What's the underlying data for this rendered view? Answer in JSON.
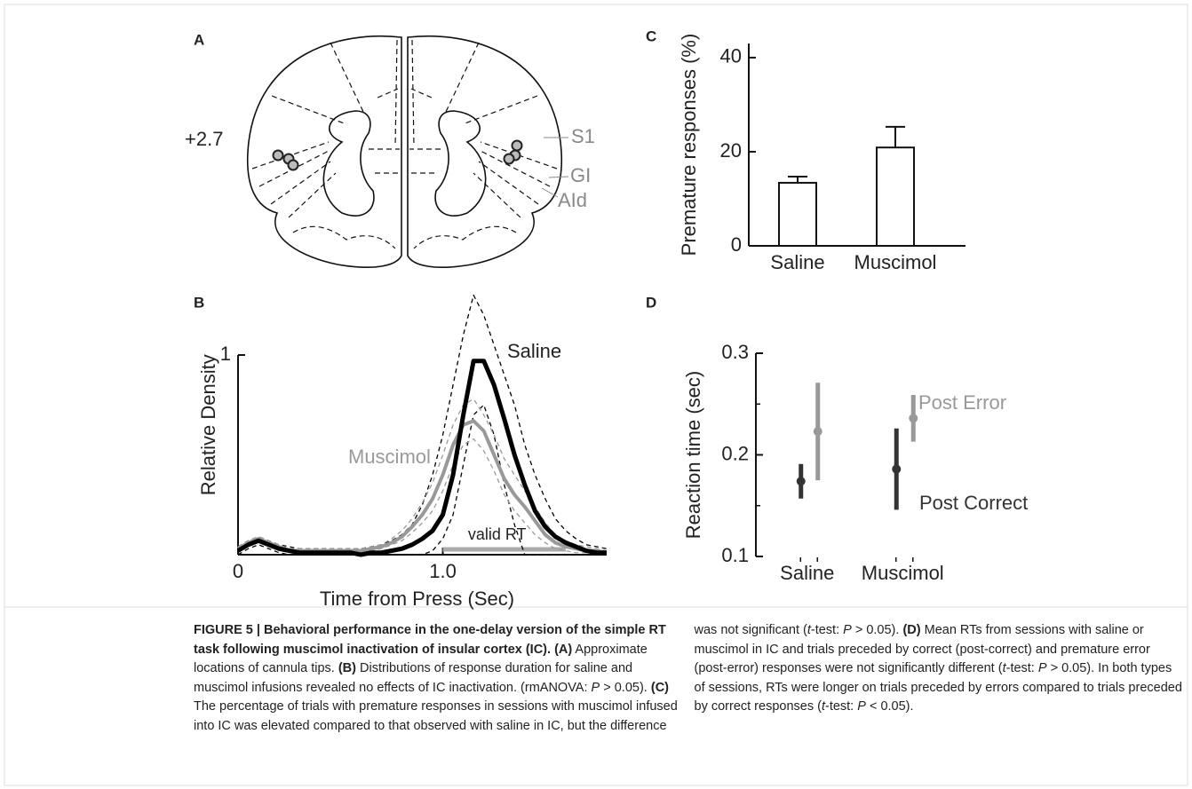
{
  "figure": {
    "panel_labels": [
      "A",
      "B",
      "C",
      "D"
    ]
  },
  "diagram": {
    "bregma": "+2.7",
    "regions": [
      "S1",
      "GI",
      "AId"
    ]
  },
  "chart_data": [
    {
      "type": "line",
      "xlabel": "Time from Press (Sec)",
      "ylabel": "Relative Density",
      "x": [
        0,
        0.05,
        0.1,
        0.15,
        0.2,
        0.25,
        0.3,
        0.35,
        0.4,
        0.45,
        0.5,
        0.55,
        0.6,
        0.65,
        0.7,
        0.75,
        0.8,
        0.85,
        0.9,
        0.95,
        1,
        1.05,
        1.1,
        1.15,
        1.2,
        1.25,
        1.3,
        1.35,
        1.4,
        1.45,
        1.5,
        1.55,
        1.6,
        1.65,
        1.7,
        1.75,
        1.8
      ],
      "series": [
        {
          "name": "Saline",
          "color": "#000000",
          "width": 5,
          "values": [
            0.02,
            0.05,
            0.07,
            0.05,
            0.03,
            0.02,
            0.01,
            0.01,
            0.01,
            0.01,
            0.01,
            0.01,
            0.0,
            0.01,
            0.01,
            0.02,
            0.03,
            0.05,
            0.08,
            0.12,
            0.2,
            0.4,
            0.7,
            0.97,
            0.97,
            0.85,
            0.68,
            0.5,
            0.35,
            0.22,
            0.14,
            0.09,
            0.06,
            0.04,
            0.02,
            0.01,
            0.01
          ]
        },
        {
          "name": "Muscimol",
          "color": "#999999",
          "width": 4,
          "values": [
            0.03,
            0.06,
            0.08,
            0.06,
            0.04,
            0.02,
            0.02,
            0.02,
            0.02,
            0.02,
            0.02,
            0.02,
            0.02,
            0.03,
            0.04,
            0.06,
            0.09,
            0.14,
            0.2,
            0.28,
            0.4,
            0.55,
            0.65,
            0.67,
            0.62,
            0.5,
            0.38,
            0.3,
            0.24,
            0.17,
            0.1,
            0.06,
            0.04,
            0.03,
            0.02,
            0.02,
            0.01
          ]
        },
        {
          "color": "#000000",
          "width": 1.3,
          "dashed": true,
          "values": [
            0.04,
            0.07,
            0.09,
            0.07,
            0.05,
            0.04,
            0.03,
            0.03,
            0.03,
            0.03,
            0.03,
            0.03,
            0.03,
            0.04,
            0.05,
            0.07,
            0.1,
            0.15,
            0.25,
            0.4,
            0.6,
            0.85,
            1.1,
            1.3,
            1.2,
            1.05,
            0.9,
            0.75,
            0.55,
            0.4,
            0.28,
            0.18,
            0.12,
            0.08,
            0.05,
            0.04,
            0.03
          ]
        },
        {
          "color": "#000000",
          "width": 1.3,
          "dashed": true,
          "values": [
            0.0,
            0.03,
            0.05,
            0.03,
            0.01,
            0.0,
            0.0,
            0.0,
            0.0,
            0.0,
            0.0,
            0.0,
            0.0,
            0.0,
            0.0,
            0.0,
            0.0,
            0.0,
            0.0,
            0.02,
            0.08,
            0.2,
            0.45,
            0.7,
            0.75,
            0.6,
            0.35,
            0.15,
            0.0,
            0.0,
            0.0,
            0.0,
            0.0,
            0.0,
            0.0,
            0.0,
            0.0
          ]
        },
        {
          "color": "#999999",
          "width": 1.3,
          "dashed": true,
          "values": [
            0.04,
            0.07,
            0.09,
            0.07,
            0.05,
            0.03,
            0.03,
            0.03,
            0.03,
            0.03,
            0.03,
            0.03,
            0.03,
            0.04,
            0.05,
            0.08,
            0.12,
            0.18,
            0.26,
            0.36,
            0.5,
            0.65,
            0.75,
            0.78,
            0.7,
            0.6,
            0.48,
            0.4,
            0.32,
            0.24,
            0.16,
            0.1,
            0.07,
            0.05,
            0.04,
            0.03,
            0.02
          ]
        },
        {
          "color": "#999999",
          "width": 1.3,
          "dashed": true,
          "values": [
            0.02,
            0.05,
            0.06,
            0.05,
            0.03,
            0.01,
            0.01,
            0.01,
            0.01,
            0.01,
            0.01,
            0.01,
            0.01,
            0.02,
            0.03,
            0.05,
            0.07,
            0.11,
            0.16,
            0.22,
            0.32,
            0.45,
            0.55,
            0.58,
            0.52,
            0.42,
            0.3,
            0.22,
            0.16,
            0.1,
            0.06,
            0.03,
            0.02,
            0.01,
            0.01,
            0.01,
            0.01
          ]
        }
      ],
      "xlim": [
        0,
        1.8
      ],
      "ylim": [
        0,
        1.3
      ],
      "xticks": [
        0,
        {
          "value": 1,
          "label": "1.0"
        }
      ],
      "yticks": [
        1
      ],
      "annotation": {
        "text": "valid RT",
        "range": [
          1,
          1.6
        ],
        "color": "#aaaaaa"
      }
    },
    {
      "type": "bar",
      "ylabel": "Premature responses (%)",
      "categories": [
        "Saline",
        "Muscimol"
      ],
      "values": [
        13.4,
        20.9
      ],
      "errors": [
        1.3,
        4.4
      ],
      "color": "#ffffff",
      "ylim": [
        0,
        43
      ],
      "yticks": [
        0,
        20,
        40
      ]
    },
    {
      "type": "errorbar",
      "ylabel": "Reaction time (sec)",
      "categories": [
        "Saline",
        "Muscimol"
      ],
      "series": [
        {
          "name": "Post Correct",
          "color": "#333333",
          "values": [
            0.174,
            0.186
          ],
          "errors": [
            0.017,
            0.04
          ]
        },
        {
          "name": "Post Error",
          "color": "#999999",
          "values": [
            0.223,
            0.236
          ],
          "errors": [
            0.048,
            0.023
          ]
        }
      ],
      "ylim": [
        0.1,
        0.3
      ],
      "yticks": [
        0.1,
        0.2,
        0.3
      ],
      "minor_yticks": [
        0.15,
        0.25
      ]
    }
  ],
  "caption": {
    "segments": [
      {
        "style": "bold",
        "text": "FIGURE 5 | Behavioral performance in the one-delay version of the simple RT task following muscimol inactivation of insular cortex (IC). (A)"
      },
      {
        "style": "normal",
        "text": " Approximate locations of cannula tips. "
      },
      {
        "style": "bold",
        "text": "(B)"
      },
      {
        "style": "normal",
        "text": " Distributions of response duration for saline and muscimol infusions revealed no effects of IC inactivation. (rmANOVA: "
      },
      {
        "style": "italic",
        "text": "P"
      },
      {
        "style": "normal",
        "text": " > 0.05). "
      },
      {
        "style": "bold",
        "text": "(C)"
      },
      {
        "style": "normal",
        "text": " The percentage of trials with premature responses in sessions with muscimol infused into IC was elevated compared to that observed with saline in IC, but the difference was not significant ("
      },
      {
        "style": "italic",
        "text": "t"
      },
      {
        "style": "normal",
        "text": "-test: "
      },
      {
        "style": "italic",
        "text": "P"
      },
      {
        "style": "normal",
        "text": " > 0.05). "
      },
      {
        "style": "bold",
        "text": "(D)"
      },
      {
        "style": "normal",
        "text": " Mean RTs from sessions with saline or muscimol in IC and trials preceded by correct (post-correct) and premature error (post-error) responses were not significantly different ("
      },
      {
        "style": "italic",
        "text": "t"
      },
      {
        "style": "normal",
        "text": "-test: "
      },
      {
        "style": "italic",
        "text": "P"
      },
      {
        "style": "normal",
        "text": " > 0.05). In both types of sessions, RTs were longer on trials preceded by errors compared to trials preceded by correct responses ("
      },
      {
        "style": "italic",
        "text": "t"
      },
      {
        "style": "normal",
        "text": "-test: "
      },
      {
        "style": "italic",
        "text": "P"
      },
      {
        "style": "normal",
        "text": " < 0.05)."
      }
    ]
  }
}
